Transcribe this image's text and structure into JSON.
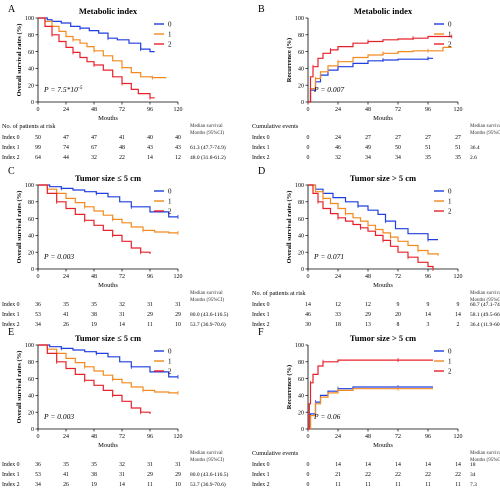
{
  "colors": {
    "index0": "#1f3fe0",
    "index1": "#f28a1e",
    "index2": "#e8202a"
  },
  "chart_data": [
    {
      "panel": "A",
      "type": "line",
      "title": "Metabolic index",
      "ylabel": "Overall survival rates (%)",
      "xlabel": "Mouths",
      "xlim": [
        0,
        120
      ],
      "ylim": [
        0,
        100
      ],
      "xticks": [
        "0",
        "24",
        "48",
        "72",
        "96",
        "120"
      ],
      "yticks": [
        "0",
        "20",
        "40",
        "60",
        "80",
        "100"
      ],
      "pvalue": "P = 7.5*10",
      "pvalue_exp": "-5",
      "legend": [
        "0",
        "1",
        "2"
      ],
      "series": [
        {
          "name": "0",
          "x": [
            0,
            8,
            12,
            20,
            28,
            36,
            44,
            52,
            60,
            68,
            78,
            88,
            96,
            100
          ],
          "y": [
            100,
            98,
            96,
            94,
            90,
            88,
            85,
            82,
            76,
            74,
            70,
            63,
            60,
            60
          ]
        },
        {
          "name": "1",
          "x": [
            0,
            6,
            12,
            18,
            24,
            30,
            36,
            42,
            48,
            56,
            64,
            72,
            80,
            88,
            98,
            110
          ],
          "y": [
            100,
            96,
            90,
            84,
            78,
            74,
            70,
            66,
            61,
            55,
            49,
            41,
            35,
            30,
            29,
            29
          ]
        },
        {
          "name": "2",
          "x": [
            0,
            6,
            12,
            18,
            24,
            30,
            36,
            42,
            48,
            56,
            64,
            72,
            80,
            86,
            96,
            100
          ],
          "y": [
            100,
            90,
            80,
            72,
            65,
            59,
            53,
            48,
            44,
            38,
            30,
            22,
            15,
            10,
            5,
            5
          ]
        }
      ],
      "table": {
        "title": "No. of patients at risk",
        "note": "Median survival Months (95%CI)",
        "rows": [
          {
            "label": "Index 0",
            "values": [
              "50",
              "47",
              "47",
              "41",
              "40",
              "40"
            ],
            "median": ""
          },
          {
            "label": "Index 1",
            "values": [
              "99",
              "74",
              "67",
              "48",
              "43",
              "43"
            ],
            "median": "61.3 (47.7-74.9)"
          },
          {
            "label": "Index 2",
            "values": [
              "64",
              "44",
              "32",
              "22",
              "14",
              "12"
            ],
            "median": "48.0 (31.8-61.2)"
          }
        ]
      }
    },
    {
      "panel": "B",
      "type": "line",
      "title": "Metabolic index",
      "ylabel": "Recurrence (%)",
      "xlabel": "Mouths",
      "xlim": [
        0,
        120
      ],
      "ylim": [
        0,
        100
      ],
      "xticks": [
        "0",
        "24",
        "48",
        "72",
        "96",
        "120"
      ],
      "yticks": [
        "0",
        "20",
        "40",
        "60",
        "80",
        "100"
      ],
      "pvalue": "P = 0.007",
      "legend": [
        "0",
        "1",
        "2"
      ],
      "series": [
        {
          "name": "0",
          "x": [
            0,
            2,
            6,
            10,
            16,
            24,
            36,
            48,
            60,
            72,
            84,
            96,
            100
          ],
          "y": [
            0,
            14,
            24,
            32,
            38,
            42,
            46,
            49,
            50,
            51,
            51,
            52,
            52
          ]
        },
        {
          "name": "1",
          "x": [
            0,
            2,
            6,
            10,
            16,
            24,
            36,
            48,
            60,
            72,
            84,
            96,
            108,
            115
          ],
          "y": [
            0,
            16,
            28,
            36,
            43,
            48,
            53,
            56,
            58,
            60,
            61,
            61,
            65,
            65
          ]
        },
        {
          "name": "2",
          "x": [
            0,
            2,
            4,
            8,
            12,
            18,
            24,
            36,
            48,
            60,
            72,
            84,
            96,
            108,
            115
          ],
          "y": [
            0,
            30,
            42,
            52,
            58,
            62,
            66,
            70,
            72,
            74,
            75,
            76,
            78,
            78,
            78
          ]
        }
      ],
      "table": {
        "title": "Cumulative events",
        "note": "Median survival Months (95%CI)",
        "rows": [
          {
            "label": "Index 0",
            "values": [
              "0",
              "24",
              "27",
              "27",
              "27",
              "27"
            ],
            "median": ""
          },
          {
            "label": "Index 1",
            "values": [
              "0",
              "46",
              "49",
              "50",
              "51",
              "51"
            ],
            "median": "36.4"
          },
          {
            "label": "Index 2",
            "values": [
              "0",
              "32",
              "34",
              "34",
              "35",
              "35"
            ],
            "median": "2.6"
          }
        ]
      }
    },
    {
      "panel": "C",
      "type": "line",
      "title": "Tumor size ≤ 5 cm",
      "ylabel": "Overall survival rates (%)",
      "xlabel": "Mouths",
      "xlim": [
        0,
        120
      ],
      "ylim": [
        0,
        100
      ],
      "xticks": [
        "0",
        "24",
        "48",
        "72",
        "96",
        "120"
      ],
      "yticks": [
        "0",
        "20",
        "40",
        "60",
        "80",
        "100"
      ],
      "pvalue": "P = 0.003",
      "legend": [
        "0",
        "1",
        "2"
      ],
      "series": [
        {
          "name": "0",
          "x": [
            0,
            10,
            20,
            30,
            40,
            50,
            60,
            70,
            80,
            96,
            112,
            120
          ],
          "y": [
            100,
            98,
            96,
            94,
            92,
            90,
            86,
            80,
            74,
            68,
            62,
            62
          ]
        },
        {
          "name": "1",
          "x": [
            0,
            8,
            16,
            24,
            32,
            40,
            48,
            56,
            64,
            72,
            80,
            90,
            100,
            112,
            120
          ],
          "y": [
            100,
            95,
            90,
            84,
            79,
            74,
            69,
            64,
            59,
            55,
            50,
            46,
            44,
            43,
            43
          ]
        },
        {
          "name": "2",
          "x": [
            0,
            8,
            16,
            24,
            32,
            40,
            48,
            56,
            64,
            72,
            80,
            88,
            96
          ],
          "y": [
            100,
            90,
            80,
            72,
            65,
            58,
            52,
            46,
            40,
            33,
            25,
            20,
            18
          ]
        }
      ],
      "table": {
        "title": "",
        "note": "Median survival Months (95%CI)",
        "rows": [
          {
            "label": "Index 0",
            "values": [
              "36",
              "35",
              "35",
              "32",
              "31",
              "31"
            ],
            "median": ""
          },
          {
            "label": "Index 1",
            "values": [
              "53",
              "41",
              "38",
              "31",
              "29",
              "29"
            ],
            "median": "80.0 (43.6-116.5)"
          },
          {
            "label": "Index 2",
            "values": [
              "34",
              "26",
              "19",
              "14",
              "11",
              "10"
            ],
            "median": "53.7 (36.9-70.6)"
          }
        ]
      }
    },
    {
      "panel": "D",
      "type": "line",
      "title": "Tumor size > 5 cm",
      "ylabel": "Overall survival rates (%)",
      "xlabel": "Mouths",
      "xlim": [
        0,
        120
      ],
      "ylim": [
        0,
        100
      ],
      "xticks": [
        "0",
        "24",
        "48",
        "72",
        "96",
        "120"
      ],
      "yticks": [
        "0",
        "20",
        "40",
        "60",
        "80",
        "100"
      ],
      "pvalue": "P = 0.071",
      "legend": [
        "0",
        "1",
        "2"
      ],
      "series": [
        {
          "name": "0",
          "x": [
            0,
            6,
            12,
            20,
            30,
            40,
            48,
            56,
            62,
            70,
            80,
            96,
            104
          ],
          "y": [
            100,
            95,
            90,
            85,
            80,
            75,
            70,
            65,
            57,
            48,
            42,
            35,
            35
          ]
        },
        {
          "name": "1",
          "x": [
            0,
            6,
            12,
            18,
            24,
            30,
            36,
            42,
            48,
            54,
            60,
            66,
            72,
            80,
            88,
            96,
            104
          ],
          "y": [
            100,
            92,
            84,
            78,
            72,
            66,
            61,
            57,
            52,
            47,
            43,
            38,
            33,
            28,
            22,
            18,
            16
          ]
        },
        {
          "name": "2",
          "x": [
            0,
            4,
            8,
            12,
            18,
            24,
            30,
            36,
            42,
            48,
            54,
            60,
            66,
            72,
            80,
            88,
            96,
            100
          ],
          "y": [
            100,
            90,
            80,
            72,
            66,
            61,
            57,
            53,
            49,
            45,
            40,
            34,
            27,
            20,
            14,
            8,
            3,
            0
          ]
        }
      ],
      "table": {
        "title": "No. of patients at risk",
        "note": "Median survival Months (95%CI)",
        "rows": [
          {
            "label": "Index 0",
            "values": [
              "14",
              "12",
              "12",
              "9",
              "9",
              "9"
            ],
            "median": "60.7 (47.1-74.3)"
          },
          {
            "label": "Index 1",
            "values": [
              "46",
              "33",
              "29",
              "20",
              "14",
              "14"
            ],
            "median": "58.1 (49.5-66.7)"
          },
          {
            "label": "Index 2",
            "values": [
              "30",
              "18",
              "13",
              "8",
              "3",
              "2"
            ],
            "median": "36.4 (11.9-60.9)"
          }
        ]
      }
    },
    {
      "panel": "E",
      "type": "line",
      "title": "Tumor size ≤ 5 cm",
      "ylabel": "Overall survival rates (%)",
      "xlabel": "Mouths",
      "xlim": [
        0,
        120
      ],
      "ylim": [
        0,
        100
      ],
      "xticks": [
        "0",
        "24",
        "48",
        "72",
        "96",
        "120"
      ],
      "yticks": [
        "0",
        "20",
        "40",
        "60",
        "80",
        "100"
      ],
      "pvalue": "P = 0.003",
      "legend": [
        "0",
        "1",
        "2"
      ],
      "series": [
        {
          "name": "0",
          "x": [
            0,
            10,
            20,
            30,
            40,
            50,
            60,
            70,
            80,
            96,
            112,
            120
          ],
          "y": [
            100,
            98,
            96,
            94,
            92,
            90,
            86,
            80,
            74,
            68,
            62,
            62
          ]
        },
        {
          "name": "1",
          "x": [
            0,
            8,
            16,
            24,
            32,
            40,
            48,
            56,
            64,
            72,
            80,
            90,
            100,
            112,
            120
          ],
          "y": [
            100,
            95,
            90,
            84,
            79,
            74,
            69,
            64,
            59,
            55,
            50,
            46,
            44,
            43,
            43
          ]
        },
        {
          "name": "2",
          "x": [
            0,
            8,
            16,
            24,
            32,
            40,
            48,
            56,
            64,
            72,
            80,
            88,
            96
          ],
          "y": [
            100,
            90,
            80,
            72,
            65,
            58,
            52,
            46,
            40,
            33,
            25,
            20,
            18
          ]
        }
      ],
      "table": {
        "title": "",
        "note": "Median survival Months (95%CI)",
        "rows": [
          {
            "label": "Index 0",
            "values": [
              "36",
              "35",
              "35",
              "32",
              "31",
              "31"
            ],
            "median": ""
          },
          {
            "label": "Index 1",
            "values": [
              "53",
              "41",
              "38",
              "31",
              "29",
              "29"
            ],
            "median": "80.0 (43.6-116.5)"
          },
          {
            "label": "Index 2",
            "values": [
              "34",
              "26",
              "19",
              "14",
              "11",
              "10"
            ],
            "median": "53.7 (36.9-70.6)"
          }
        ]
      }
    },
    {
      "panel": "F",
      "type": "line",
      "title": "Tumor size > 5 cm",
      "ylabel": "Recurrence (%)",
      "xlabel": "Mouths",
      "xlim": [
        0,
        120
      ],
      "ylim": [
        0,
        100
      ],
      "xticks": [
        "0",
        "24",
        "48",
        "72",
        "96",
        "120"
      ],
      "yticks": [
        "0",
        "20",
        "40",
        "60",
        "80",
        "100"
      ],
      "pvalue": "P = 0.06",
      "legend": [
        "0",
        "1",
        "2"
      ],
      "series": [
        {
          "name": "0",
          "x": [
            0,
            2,
            6,
            10,
            16,
            24,
            36,
            48,
            72,
            100
          ],
          "y": [
            0,
            18,
            32,
            40,
            45,
            48,
            50,
            50,
            50,
            50
          ]
        },
        {
          "name": "1",
          "x": [
            0,
            2,
            6,
            10,
            16,
            24,
            36,
            48,
            72,
            100
          ],
          "y": [
            0,
            16,
            30,
            38,
            43,
            46,
            48,
            48,
            48,
            48
          ]
        },
        {
          "name": "2",
          "x": [
            0,
            1,
            2,
            4,
            8,
            12,
            24,
            48,
            72,
            100
          ],
          "y": [
            0,
            30,
            55,
            65,
            75,
            80,
            82,
            82,
            82,
            82
          ]
        }
      ],
      "table": {
        "title": "Cumulative events",
        "note": "Median survival Months (95%CI)",
        "rows": [
          {
            "label": "Index 0",
            "values": [
              "0",
              "14",
              "14",
              "14",
              "14",
              "14"
            ],
            "median": "18"
          },
          {
            "label": "Index 1",
            "values": [
              "0",
              "21",
              "22",
              "22",
              "22",
              "22"
            ],
            "median": "34"
          },
          {
            "label": "Index 2",
            "values": [
              "0",
              "11",
              "11",
              "11",
              "11",
              "11"
            ],
            "median": "7.3"
          }
        ]
      }
    }
  ]
}
